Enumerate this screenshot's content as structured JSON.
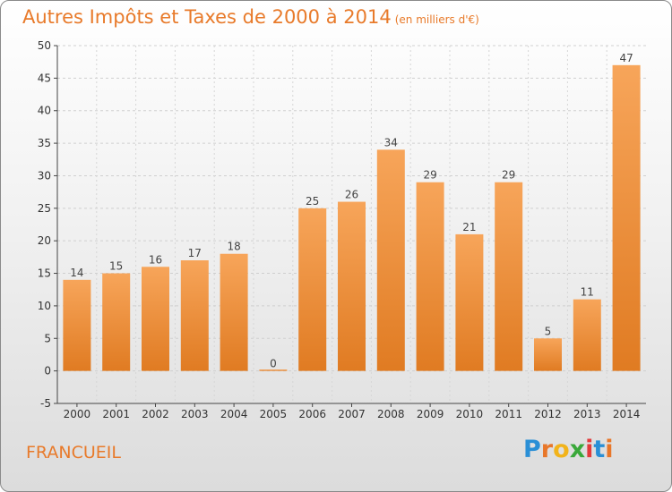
{
  "title": "Autres Impôts et Taxes de 2000 à 2014",
  "unit_note": "(en milliers d'€)",
  "place": "FRANCUEIL",
  "logo_text": "Proxiti",
  "colors": {
    "accent": "#e87a2a",
    "bar_top": "#f7a55a",
    "bar_bottom": "#e07b22"
  },
  "chart_data": {
    "type": "bar",
    "title": "Autres Impôts et Taxes de 2000 à 2014",
    "xlabel": "",
    "ylabel": "",
    "categories": [
      "2000",
      "2001",
      "2002",
      "2003",
      "2004",
      "2005",
      "2006",
      "2007",
      "2008",
      "2009",
      "2010",
      "2011",
      "2012",
      "2013",
      "2014"
    ],
    "values": [
      14,
      15,
      16,
      17,
      18,
      0,
      25,
      26,
      34,
      29,
      21,
      29,
      5,
      11,
      47
    ],
    "ylim": [
      -5,
      50
    ],
    "yticks": [
      -5,
      0,
      5,
      10,
      15,
      20,
      25,
      30,
      35,
      40,
      45,
      50
    ],
    "grid": true,
    "legend": "none"
  }
}
